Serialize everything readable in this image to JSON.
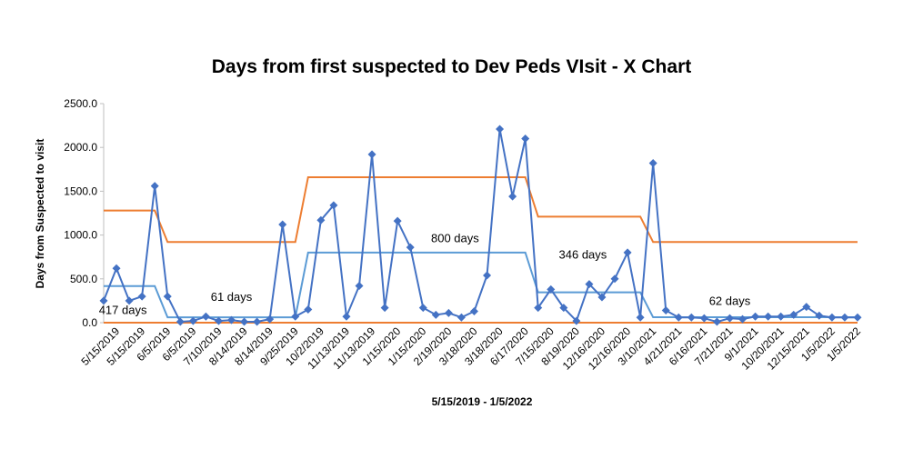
{
  "chart_data": {
    "type": "line",
    "title": "Days from first suspected to Dev Peds VIsit - X Chart",
    "xlabel": "5/15/2019 - 1/5/2022",
    "ylabel": "Days from Suspected to visit",
    "ylim": [
      0,
      2500
    ],
    "yticks": [
      "0.0",
      "500.0",
      "1000.0",
      "1500.0",
      "2000.0",
      "2500.0"
    ],
    "grid": false,
    "n_points": 60,
    "x_tick_labels": [
      "5/15/2019",
      "5/15/2019",
      "6/5/2019",
      "6/5/2019",
      "7/10/2019",
      "8/14/2019",
      "8/14/2019",
      "9/25/2019",
      "10/2/2019",
      "11/13/2019",
      "11/13/2019",
      "1/15/2020",
      "1/15/2020",
      "2/19/2020",
      "3/18/2020",
      "3/18/2020",
      "6/17/2020",
      "7/15/2020",
      "8/19/2020",
      "12/16/2020",
      "12/16/2020",
      "3/10/2021",
      "4/21/2021",
      "6/16/2021",
      "7/21/2021",
      "9/1/2021",
      "10/20/2021",
      "12/15/2021",
      "1/5/2022",
      "1/5/2022"
    ],
    "series": [
      {
        "role": "data",
        "color": "#4472C4",
        "values": [
          250,
          620,
          250,
          300,
          1560,
          300,
          10,
          20,
          70,
          20,
          30,
          10,
          10,
          40,
          1120,
          70,
          150,
          1170,
          1340,
          70,
          420,
          1920,
          170,
          1160,
          860,
          170,
          90,
          110,
          60,
          130,
          540,
          2210,
          1440,
          2100,
          170,
          380,
          170,
          20,
          440,
          290,
          500,
          800,
          60,
          1820,
          140,
          60,
          60,
          50,
          10,
          50,
          40,
          70,
          70,
          70,
          90,
          180,
          80,
          60,
          60,
          60
        ]
      },
      {
        "role": "centerline",
        "color": "#5B9BD5",
        "segments": [
          {
            "from_index": 0,
            "to_index": 4,
            "value": 417
          },
          {
            "from_index": 5,
            "to_index": 15,
            "value": 61
          },
          {
            "from_index": 16,
            "to_index": 33,
            "value": 800
          },
          {
            "from_index": 34,
            "to_index": 42,
            "value": 346
          },
          {
            "from_index": 43,
            "to_index": 59,
            "value": 62
          }
        ]
      },
      {
        "role": "upper_limit",
        "color": "#ED7D31",
        "segments": [
          {
            "from_index": 0,
            "to_index": 4,
            "value": 1280
          },
          {
            "from_index": 5,
            "to_index": 15,
            "value": 920
          },
          {
            "from_index": 16,
            "to_index": 33,
            "value": 1660
          },
          {
            "from_index": 34,
            "to_index": 42,
            "value": 1210
          },
          {
            "from_index": 43,
            "to_index": 59,
            "value": 920
          }
        ]
      },
      {
        "role": "lower_limit",
        "color": "#ED7D31",
        "segments": [
          {
            "from_index": 0,
            "to_index": 59,
            "value": 0
          }
        ]
      }
    ],
    "annotations": [
      {
        "text": "417 days",
        "index": 1.5,
        "value": 100
      },
      {
        "text": "61 days",
        "index": 10,
        "value": 250
      },
      {
        "text": "800 days",
        "index": 27.5,
        "value": 920
      },
      {
        "text": "346 days",
        "index": 37.5,
        "value": 730
      },
      {
        "text": "62 days",
        "index": 49,
        "value": 200
      }
    ]
  }
}
